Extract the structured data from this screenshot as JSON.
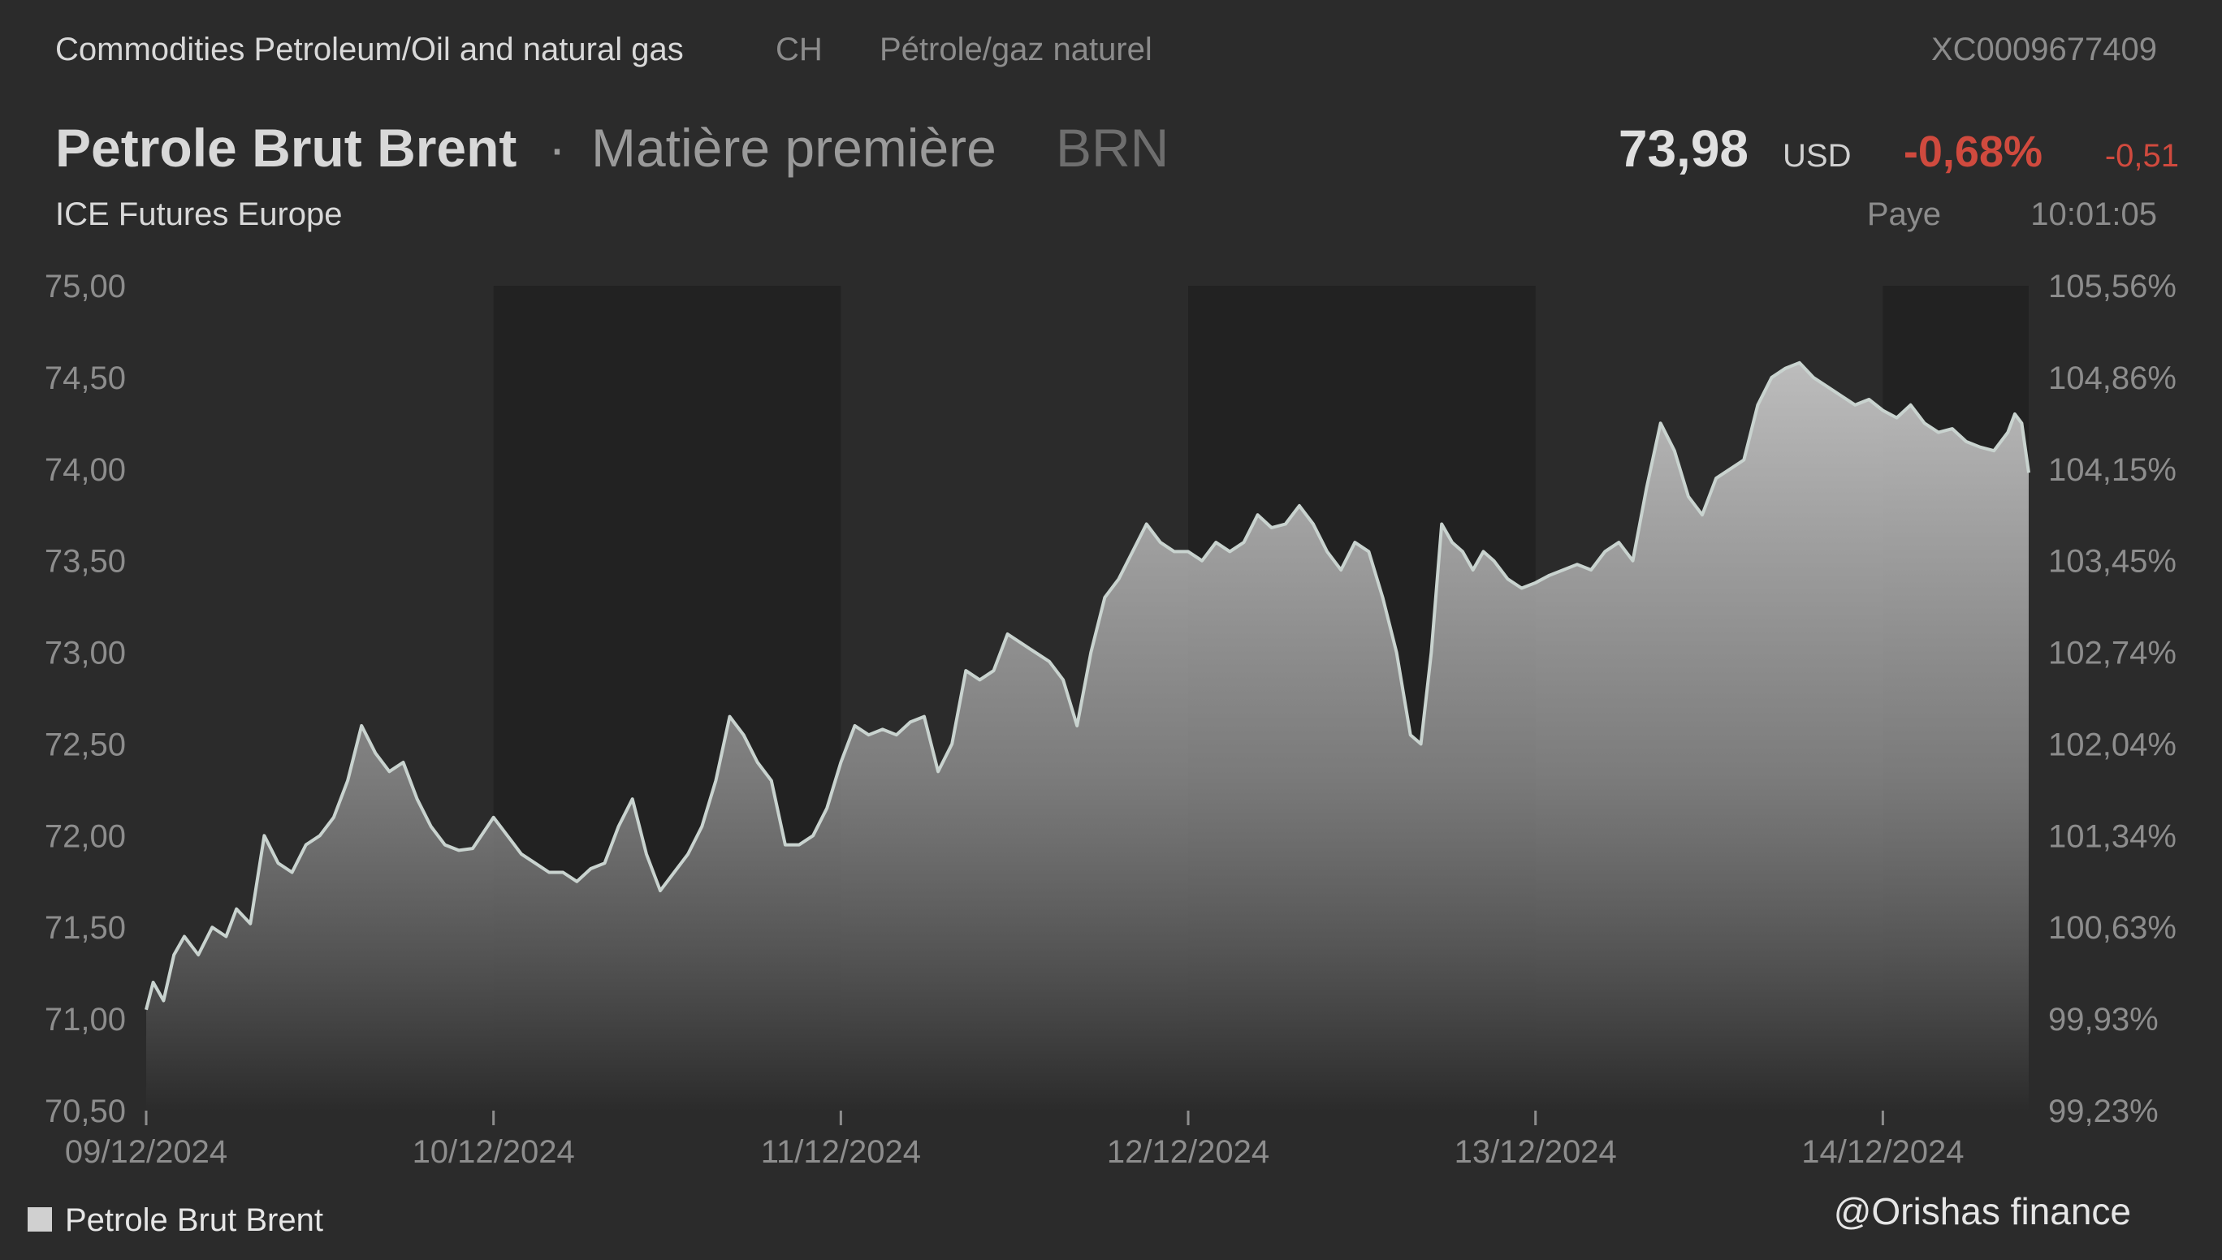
{
  "header": {
    "category": "Commodities Petroleum/Oil and natural gas",
    "country": "CH",
    "category_fr": "Pétrole/gaz naturel",
    "isin": "XC0009677409",
    "name": "Petrole Brut Brent",
    "separator": "·",
    "asset_type": "Matière première",
    "symbol": "BRN",
    "exchange": "ICE Futures Europe",
    "price": "73,98",
    "currency": "USD",
    "change_pct": "-0,68%",
    "change_abs": "-0,51",
    "status": "Paye",
    "time": "10:01:05"
  },
  "colors": {
    "background": "#2b2b2b",
    "shade_band": "#222222",
    "line": "#c9d3cf",
    "negative": "#d04a3e",
    "area_top": "#c4c4c4",
    "area_bottom": "#2b2b2b"
  },
  "legend": {
    "label": "Petrole Brut Brent",
    "placement": "bottom-left"
  },
  "credit": "@Orishas finance",
  "chart_data": {
    "type": "area",
    "title": "Petrole Brut Brent",
    "series_name": "Petrole Brut Brent",
    "ylim": [
      70.5,
      75.0
    ],
    "y_ticks": [
      "75,00",
      "74,50",
      "74,00",
      "73,50",
      "73,00",
      "72,50",
      "72,00",
      "71,50",
      "71,00",
      "70,50"
    ],
    "y2_ticks": [
      "105,56%",
      "104,86%",
      "104,15%",
      "103,45%",
      "102,74%",
      "102,04%",
      "101,34%",
      "100,63%",
      "99,93%",
      "99,23%"
    ],
    "x_ticks": [
      "09/12/2024",
      "10/12/2024",
      "11/12/2024",
      "12/12/2024",
      "13/12/2024",
      "14/12/2024"
    ],
    "x_range_days": [
      0,
      5.42
    ],
    "shaded_days": [
      [
        1,
        2
      ],
      [
        3,
        4
      ],
      [
        5,
        5.42
      ]
    ],
    "grid": false,
    "points": [
      [
        0.0,
        71.05
      ],
      [
        0.02,
        71.2
      ],
      [
        0.05,
        71.1
      ],
      [
        0.08,
        71.35
      ],
      [
        0.11,
        71.45
      ],
      [
        0.15,
        71.35
      ],
      [
        0.19,
        71.5
      ],
      [
        0.23,
        71.45
      ],
      [
        0.26,
        71.6
      ],
      [
        0.3,
        71.52
      ],
      [
        0.34,
        72.0
      ],
      [
        0.38,
        71.85
      ],
      [
        0.42,
        71.8
      ],
      [
        0.46,
        71.95
      ],
      [
        0.5,
        72.0
      ],
      [
        0.54,
        72.1
      ],
      [
        0.58,
        72.3
      ],
      [
        0.62,
        72.6
      ],
      [
        0.66,
        72.45
      ],
      [
        0.7,
        72.35
      ],
      [
        0.74,
        72.4
      ],
      [
        0.78,
        72.2
      ],
      [
        0.82,
        72.05
      ],
      [
        0.86,
        71.95
      ],
      [
        0.9,
        71.92
      ],
      [
        0.94,
        71.93
      ],
      [
        1.0,
        72.1
      ],
      [
        1.04,
        72.0
      ],
      [
        1.08,
        71.9
      ],
      [
        1.12,
        71.85
      ],
      [
        1.16,
        71.8
      ],
      [
        1.2,
        71.8
      ],
      [
        1.24,
        71.75
      ],
      [
        1.28,
        71.82
      ],
      [
        1.32,
        71.85
      ],
      [
        1.36,
        72.05
      ],
      [
        1.4,
        72.2
      ],
      [
        1.44,
        71.9
      ],
      [
        1.48,
        71.7
      ],
      [
        1.52,
        71.8
      ],
      [
        1.56,
        71.9
      ],
      [
        1.6,
        72.05
      ],
      [
        1.64,
        72.3
      ],
      [
        1.68,
        72.65
      ],
      [
        1.72,
        72.55
      ],
      [
        1.76,
        72.4
      ],
      [
        1.8,
        72.3
      ],
      [
        1.84,
        71.95
      ],
      [
        1.88,
        71.95
      ],
      [
        1.92,
        72.0
      ],
      [
        1.96,
        72.15
      ],
      [
        2.0,
        72.4
      ],
      [
        2.04,
        72.6
      ],
      [
        2.08,
        72.55
      ],
      [
        2.12,
        72.58
      ],
      [
        2.16,
        72.55
      ],
      [
        2.2,
        72.62
      ],
      [
        2.24,
        72.65
      ],
      [
        2.28,
        72.35
      ],
      [
        2.32,
        72.5
      ],
      [
        2.36,
        72.9
      ],
      [
        2.4,
        72.85
      ],
      [
        2.44,
        72.9
      ],
      [
        2.48,
        73.1
      ],
      [
        2.52,
        73.05
      ],
      [
        2.56,
        73.0
      ],
      [
        2.6,
        72.95
      ],
      [
        2.64,
        72.85
      ],
      [
        2.68,
        72.6
      ],
      [
        2.72,
        73.0
      ],
      [
        2.76,
        73.3
      ],
      [
        2.8,
        73.4
      ],
      [
        2.84,
        73.55
      ],
      [
        2.88,
        73.7
      ],
      [
        2.92,
        73.6
      ],
      [
        2.96,
        73.55
      ],
      [
        3.0,
        73.55
      ],
      [
        3.04,
        73.5
      ],
      [
        3.08,
        73.6
      ],
      [
        3.12,
        73.55
      ],
      [
        3.16,
        73.6
      ],
      [
        3.2,
        73.75
      ],
      [
        3.24,
        73.68
      ],
      [
        3.28,
        73.7
      ],
      [
        3.32,
        73.8
      ],
      [
        3.36,
        73.7
      ],
      [
        3.4,
        73.55
      ],
      [
        3.44,
        73.45
      ],
      [
        3.48,
        73.6
      ],
      [
        3.52,
        73.55
      ],
      [
        3.56,
        73.3
      ],
      [
        3.6,
        73.0
      ],
      [
        3.64,
        72.55
      ],
      [
        3.67,
        72.5
      ],
      [
        3.7,
        73.0
      ],
      [
        3.73,
        73.7
      ],
      [
        3.76,
        73.6
      ],
      [
        3.79,
        73.55
      ],
      [
        3.82,
        73.45
      ],
      [
        3.85,
        73.55
      ],
      [
        3.88,
        73.5
      ],
      [
        3.92,
        73.4
      ],
      [
        3.96,
        73.35
      ],
      [
        4.0,
        73.38
      ],
      [
        4.04,
        73.42
      ],
      [
        4.08,
        73.45
      ],
      [
        4.12,
        73.48
      ],
      [
        4.16,
        73.45
      ],
      [
        4.2,
        73.55
      ],
      [
        4.24,
        73.6
      ],
      [
        4.28,
        73.5
      ],
      [
        4.32,
        73.9
      ],
      [
        4.36,
        74.25
      ],
      [
        4.4,
        74.1
      ],
      [
        4.44,
        73.85
      ],
      [
        4.48,
        73.75
      ],
      [
        4.52,
        73.95
      ],
      [
        4.56,
        74.0
      ],
      [
        4.6,
        74.05
      ],
      [
        4.64,
        74.35
      ],
      [
        4.68,
        74.5
      ],
      [
        4.72,
        74.55
      ],
      [
        4.76,
        74.58
      ],
      [
        4.8,
        74.5
      ],
      [
        4.84,
        74.45
      ],
      [
        4.88,
        74.4
      ],
      [
        4.92,
        74.35
      ],
      [
        4.96,
        74.38
      ],
      [
        5.0,
        74.32
      ],
      [
        5.04,
        74.28
      ],
      [
        5.08,
        74.35
      ],
      [
        5.12,
        74.25
      ],
      [
        5.16,
        74.2
      ],
      [
        5.2,
        74.22
      ],
      [
        5.24,
        74.15
      ],
      [
        5.28,
        74.12
      ],
      [
        5.32,
        74.1
      ],
      [
        5.36,
        74.2
      ],
      [
        5.38,
        74.3
      ],
      [
        5.4,
        74.25
      ],
      [
        5.42,
        73.98
      ]
    ]
  }
}
